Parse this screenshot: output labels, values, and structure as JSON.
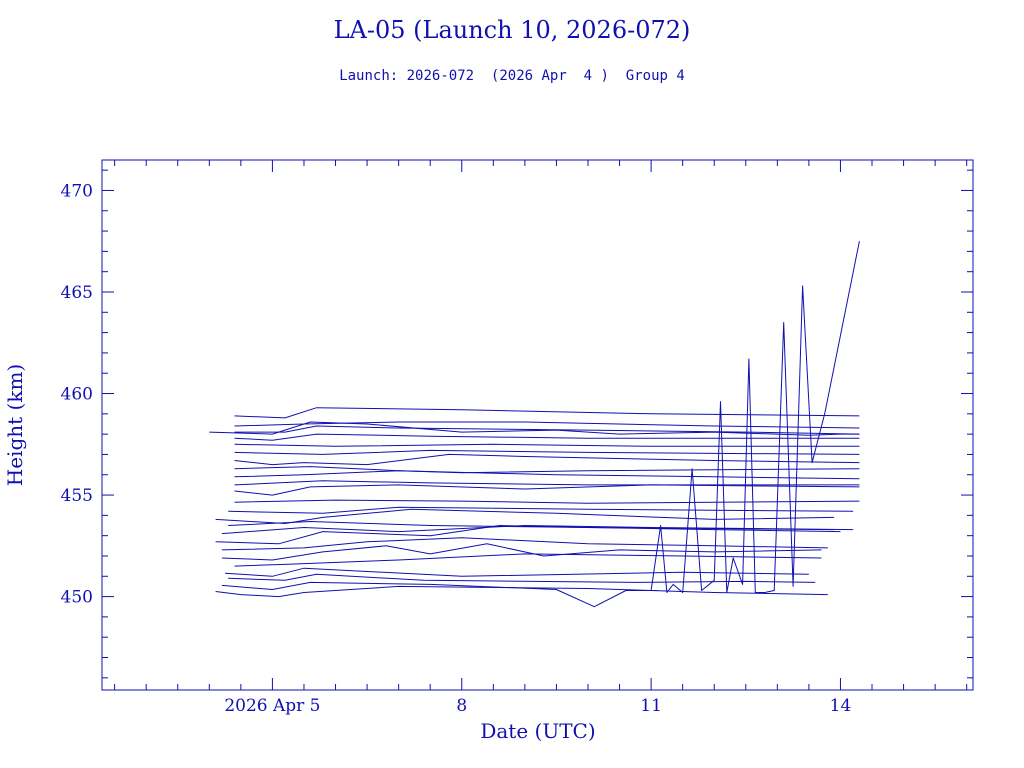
{
  "chart_data": {
    "type": "line",
    "title": "LA-05 (Launch 10, 2026-072)",
    "subtitle": "Launch: 2026-072  (2026 Apr  4 )  Group 4",
    "xlabel": "Date (UTC)",
    "ylabel": "Height (km)",
    "x_unit": "days of April 2026 (UTC)",
    "xlim": [
      2.3,
      16.1
    ],
    "ylim": [
      445.4,
      471.5
    ],
    "x_ticks": [
      {
        "x": 5.0,
        "label": "2026 Apr  5"
      },
      {
        "x": 8.0,
        "label": "8"
      },
      {
        "x": 11.0,
        "label": "11"
      },
      {
        "x": 14.0,
        "label": "14"
      }
    ],
    "y_ticks": [
      450,
      455,
      460,
      465,
      470
    ],
    "grid": false,
    "legend": "none",
    "color": "#1010b0",
    "series": [
      {
        "x": [
          4.1,
          4.5,
          5.1,
          5.5,
          7.0,
          10.0,
          12.0,
          13.8
        ],
        "y": [
          450.25,
          450.1,
          450.0,
          450.2,
          450.5,
          450.4,
          450.2,
          450.1
        ]
      },
      {
        "x": [
          4.2,
          5.0,
          5.6,
          7.5,
          9.5,
          10.1,
          10.6,
          11.1
        ],
        "y": [
          450.55,
          450.35,
          450.7,
          450.6,
          450.35,
          449.5,
          450.3,
          450.3
        ]
      },
      {
        "x": [
          4.3,
          5.2,
          5.7,
          7.4,
          10.8,
          12.5,
          13.6
        ],
        "y": [
          450.9,
          450.8,
          451.1,
          450.8,
          450.7,
          450.75,
          450.7
        ]
      },
      {
        "x": [
          4.25,
          5.0,
          5.5,
          8.0,
          11.5,
          13.5
        ],
        "y": [
          451.15,
          451.0,
          451.4,
          451.0,
          451.2,
          451.1
        ]
      },
      {
        "x": [
          4.4,
          5.3,
          7.0,
          9.0,
          11.5,
          13.7
        ],
        "y": [
          451.5,
          451.6,
          451.8,
          452.1,
          452.0,
          451.9
        ]
      },
      {
        "x": [
          4.2,
          5.0,
          5.8,
          6.8,
          7.5,
          8.4,
          9.3,
          10.5,
          12.0,
          13.7
        ],
        "y": [
          451.9,
          451.8,
          452.2,
          452.5,
          452.1,
          452.6,
          452.0,
          452.3,
          452.2,
          452.3
        ]
      },
      {
        "x": [
          4.2,
          5.5,
          6.5,
          8.0,
          10.0,
          12.0,
          13.8
        ],
        "y": [
          452.3,
          452.4,
          452.7,
          452.9,
          452.6,
          452.5,
          452.4
        ]
      },
      {
        "x": [
          4.1,
          5.1,
          5.8,
          7.5,
          8.6,
          10.0,
          13.9
        ],
        "y": [
          452.7,
          452.6,
          453.2,
          453.0,
          453.5,
          453.4,
          453.3
        ]
      },
      {
        "x": [
          4.2,
          5.5,
          7.0,
          9.0,
          11.0,
          14.2
        ],
        "y": [
          453.1,
          453.4,
          453.2,
          453.5,
          453.4,
          453.3
        ]
      },
      {
        "x": [
          4.3,
          5.6,
          7.5,
          10.0,
          12.0,
          14.0
        ],
        "y": [
          453.5,
          453.7,
          453.5,
          453.4,
          453.3,
          453.2
        ]
      },
      {
        "x": [
          4.1,
          5.2,
          5.8,
          7.2,
          9.5,
          12.0,
          13.9
        ],
        "y": [
          453.8,
          453.6,
          453.9,
          454.3,
          454.1,
          453.8,
          453.9
        ]
      },
      {
        "x": [
          4.3,
          5.8,
          7.0,
          10.0,
          14.2
        ],
        "y": [
          454.2,
          454.1,
          454.4,
          454.3,
          454.2
        ]
      },
      {
        "x": [
          4.4,
          6.0,
          8.0,
          10.0,
          12.0,
          14.3
        ],
        "y": [
          454.65,
          454.75,
          454.7,
          454.6,
          454.65,
          454.7
        ]
      },
      {
        "x": [
          4.4,
          5.0,
          5.6,
          7.0,
          9.0,
          11.0,
          14.3
        ],
        "y": [
          455.2,
          455.0,
          455.4,
          455.5,
          455.3,
          455.5,
          455.4
        ]
      },
      {
        "x": [
          4.4,
          5.8,
          7.5,
          10.0,
          14.3
        ],
        "y": [
          455.5,
          455.7,
          455.6,
          455.5,
          455.5
        ]
      },
      {
        "x": [
          4.4,
          5.5,
          7.0,
          9.5,
          12.0,
          14.3
        ],
        "y": [
          455.9,
          456.0,
          456.2,
          456.0,
          455.9,
          455.8
        ]
      },
      {
        "x": [
          4.4,
          5.6,
          7.0,
          8.0,
          10.0,
          14.3
        ],
        "y": [
          456.3,
          456.4,
          456.2,
          456.1,
          456.2,
          456.3
        ]
      },
      {
        "x": [
          4.4,
          5.0,
          5.5,
          6.5,
          7.8,
          9.0,
          12.0,
          14.3
        ],
        "y": [
          456.7,
          456.5,
          456.6,
          456.5,
          457.0,
          456.9,
          456.7,
          456.6
        ]
      },
      {
        "x": [
          4.4,
          5.8,
          7.5,
          10.0,
          14.3
        ],
        "y": [
          457.1,
          457.0,
          457.2,
          457.1,
          457.0
        ]
      },
      {
        "x": [
          4.4,
          6.0,
          8.5,
          11.0,
          14.3
        ],
        "y": [
          457.5,
          457.4,
          457.5,
          457.4,
          457.4
        ]
      },
      {
        "x": [
          4.4,
          5.0,
          5.7,
          7.5,
          10.0,
          12.0,
          14.3
        ],
        "y": [
          457.8,
          457.7,
          458.0,
          457.9,
          457.8,
          457.8,
          457.8
        ]
      },
      {
        "x": [
          4.4,
          5.2,
          5.7,
          7.0,
          10.0,
          12.5,
          14.3
        ],
        "y": [
          458.1,
          458.1,
          458.4,
          458.3,
          458.2,
          458.1,
          458.0
        ]
      },
      {
        "x": [
          4.4,
          5.5,
          7.0,
          9.0,
          12.0,
          14.3
        ],
        "y": [
          458.4,
          458.5,
          458.6,
          458.6,
          458.4,
          458.3
        ]
      },
      {
        "x": [
          4.4,
          5.2,
          5.7,
          8.0,
          11.0,
          14.3
        ],
        "y": [
          458.9,
          458.8,
          459.3,
          459.2,
          459.0,
          458.9
        ]
      },
      {
        "x": [
          4.0,
          5.0,
          5.6,
          6.5,
          8.0,
          9.5,
          10.5,
          12.0,
          13.5,
          14.0,
          14.3
        ],
        "y": [
          458.1,
          458.0,
          458.6,
          458.5,
          458.1,
          458.2,
          458.0,
          458.1,
          457.95,
          458.0,
          458.0
        ]
      },
      {
        "x": [
          11.0,
          11.15,
          11.25,
          11.35,
          11.5,
          11.65,
          11.8,
          12.0,
          12.1,
          12.2,
          12.3,
          12.45,
          12.55,
          12.65,
          12.8,
          12.95,
          13.1,
          13.25,
          13.4,
          13.55,
          13.75,
          14.3
        ],
        "y": [
          450.3,
          453.5,
          450.2,
          450.6,
          450.2,
          456.3,
          450.3,
          450.8,
          459.6,
          450.2,
          451.9,
          450.6,
          461.7,
          450.2,
          450.2,
          450.3,
          463.5,
          450.5,
          465.3,
          456.6,
          459.0,
          467.5
        ]
      }
    ]
  }
}
